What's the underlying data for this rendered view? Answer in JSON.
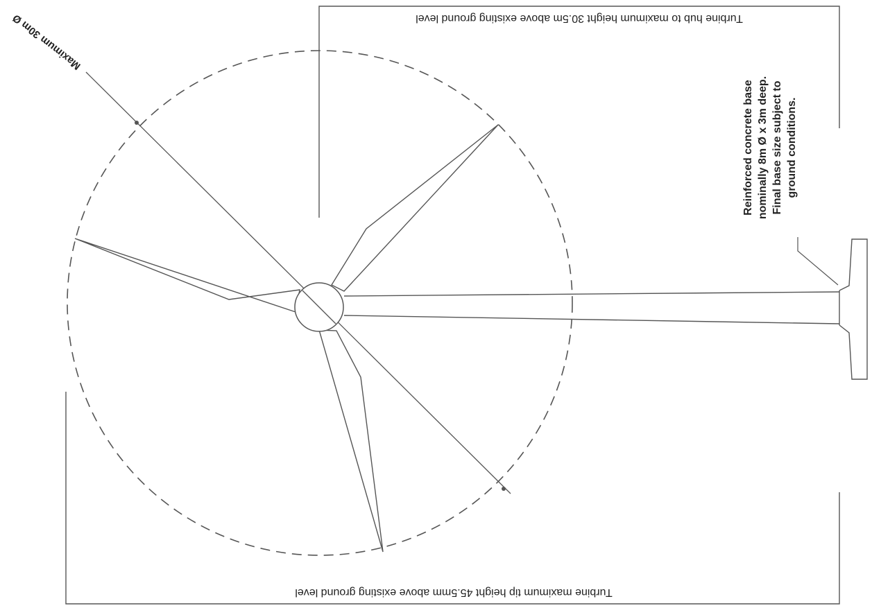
{
  "labels": {
    "hub_height": "Turbine hub to maximum height 30.5m above existing ground level",
    "tip_height": "Turbine maximum tip height 45.5mm above existing ground level",
    "rotor_diameter": "Maximum 30m Ø",
    "base_note_line1": "Reinforced concrete base",
    "base_note_line2": "nominally 8m Ø x 3m deep.",
    "base_note_line3": "Final base size subject to",
    "base_note_line4": "ground conditions."
  },
  "colors": {
    "line": "#555555",
    "text": "#222222",
    "background": "#ffffff"
  }
}
